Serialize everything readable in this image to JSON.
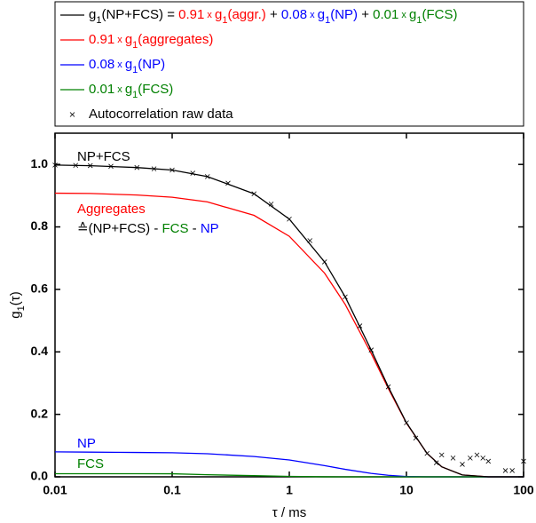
{
  "chart_data": {
    "type": "line",
    "xscale": "log",
    "xlim": [
      0.01,
      100
    ],
    "xticks": [
      0.01,
      0.1,
      1,
      10,
      100
    ],
    "ylim": [
      0,
      1.1
    ],
    "yticks": [
      {
        "value": 0,
        "label": "0.0"
      },
      {
        "value": 0.2,
        "label": "0.2"
      },
      {
        "value": 0.4,
        "label": "0.4"
      },
      {
        "value": 0.6,
        "label": "0.6"
      },
      {
        "value": 0.8,
        "label": "0.8"
      },
      {
        "value": 1,
        "label": "1.0"
      }
    ],
    "xlabel": "τ / ms",
    "ylabel": [
      {
        "text": "g"
      },
      {
        "text": "1",
        "sub": true
      },
      {
        "text": "(τ)"
      }
    ],
    "x": [
      0.01,
      0.02,
      0.05,
      0.1,
      0.2,
      0.5,
      1,
      2,
      3,
      5,
      7,
      10,
      15,
      20,
      30,
      50,
      70,
      100
    ],
    "series": [
      {
        "type": "line",
        "color": "#000000",
        "values": [
          0.998,
          0.996,
          0.99,
          0.982,
          0.961,
          0.906,
          0.825,
          0.688,
          0.576,
          0.406,
          0.288,
          0.173,
          0.075,
          0.032,
          0.006,
          0,
          0,
          0
        ]
      },
      {
        "type": "line",
        "color": "#ff0000",
        "values": [
          0.908,
          0.907,
          0.902,
          0.895,
          0.88,
          0.837,
          0.77,
          0.652,
          0.552,
          0.395,
          0.283,
          0.172,
          0.075,
          0.032,
          0.006,
          0,
          0,
          0
        ]
      },
      {
        "type": "line",
        "color": "#0000ff",
        "values": [
          0.08,
          0.079,
          0.078,
          0.077,
          0.074,
          0.065,
          0.054,
          0.036,
          0.024,
          0.011,
          0.005,
          0.001,
          0,
          0,
          0,
          0,
          0,
          0
        ]
      },
      {
        "type": "line",
        "color": "#008000",
        "values": [
          0.01,
          0.01,
          0.0099,
          0.0098,
          0.0067,
          0.0037,
          0.0014,
          0.0002,
          0,
          0,
          0,
          0,
          0,
          0,
          0,
          0,
          0,
          0
        ]
      },
      {
        "type": "scatter",
        "color": "#000000",
        "x": [
          0.01,
          0.015,
          0.02,
          0.03,
          0.05,
          0.07,
          0.1,
          0.15,
          0.2,
          0.3,
          0.5,
          0.7,
          1,
          1.5,
          2,
          3,
          4,
          5,
          7,
          10,
          12,
          15,
          18,
          20,
          25,
          30,
          35,
          40,
          45,
          50,
          70,
          80,
          100
        ],
        "values": [
          0.998,
          0.997,
          0.996,
          0.994,
          0.99,
          0.986,
          0.982,
          0.972,
          0.961,
          0.94,
          0.906,
          0.873,
          0.825,
          0.756,
          0.688,
          0.576,
          0.483,
          0.406,
          0.288,
          0.173,
          0.124,
          0.075,
          0.045,
          0.07,
          0.06,
          0.04,
          0.06,
          0.07,
          0.06,
          0.05,
          0.02,
          0.02,
          0.05
        ]
      }
    ],
    "legend": [
      [
        {
          "text": "g"
        },
        {
          "text": "1",
          "sub": true
        },
        {
          "text": "(NP+FCS) = "
        },
        {
          "text": "0.91",
          "color": "#ff0000"
        },
        {
          "text": " x ",
          "color": "#ff0000",
          "small": true
        },
        {
          "text": "g",
          "color": "#ff0000"
        },
        {
          "text": "1",
          "color": "#ff0000",
          "sub": true
        },
        {
          "text": "(aggr.)",
          "color": "#ff0000"
        },
        {
          "text": " + "
        },
        {
          "text": "0.08",
          "color": "#0000ff"
        },
        {
          "text": " x ",
          "color": "#0000ff",
          "small": true
        },
        {
          "text": "g",
          "color": "#0000ff"
        },
        {
          "text": "1",
          "color": "#0000ff",
          "sub": true
        },
        {
          "text": "(NP)",
          "color": "#0000ff"
        },
        {
          "text": " + "
        },
        {
          "text": "0.01",
          "color": "#008000"
        },
        {
          "text": " x ",
          "color": "#008000",
          "small": true
        },
        {
          "text": "g",
          "color": "#008000"
        },
        {
          "text": "1",
          "color": "#008000",
          "sub": true
        },
        {
          "text": "(FCS)",
          "color": "#008000"
        }
      ],
      [
        {
          "text": "0.91",
          "color": "#ff0000"
        },
        {
          "text": " x ",
          "color": "#ff0000",
          "small": true
        },
        {
          "text": "g",
          "color": "#ff0000"
        },
        {
          "text": "1",
          "color": "#ff0000",
          "sub": true
        },
        {
          "text": "(aggregates)",
          "color": "#ff0000"
        }
      ],
      [
        {
          "text": "0.08",
          "color": "#0000ff"
        },
        {
          "text": " x ",
          "color": "#0000ff",
          "small": true
        },
        {
          "text": "g",
          "color": "#0000ff"
        },
        {
          "text": "1",
          "color": "#0000ff",
          "sub": true
        },
        {
          "text": "(NP)",
          "color": "#0000ff"
        }
      ],
      [
        {
          "text": "0.01",
          "color": "#008000"
        },
        {
          "text": " x ",
          "color": "#008000",
          "small": true
        },
        {
          "text": "g",
          "color": "#008000"
        },
        {
          "text": "1",
          "color": "#008000",
          "sub": true
        },
        {
          "text": "(FCS)",
          "color": "#008000"
        }
      ],
      [
        {
          "text": "Autocorrelation raw data"
        }
      ]
    ],
    "annotations": [
      [
        {
          "text": "NP+FCS"
        }
      ],
      [
        {
          "text": "Aggregates",
          "color": "#ff0000"
        }
      ],
      [
        {
          "text": "≙(NP+FCS) - "
        },
        {
          "text": "FCS",
          "color": "#008000"
        },
        {
          "text": " - "
        },
        {
          "text": "NP",
          "color": "#0000ff"
        }
      ],
      [
        {
          "text": "NP",
          "color": "#0000ff"
        }
      ],
      [
        {
          "text": "FCS",
          "color": "#008000"
        }
      ]
    ]
  }
}
